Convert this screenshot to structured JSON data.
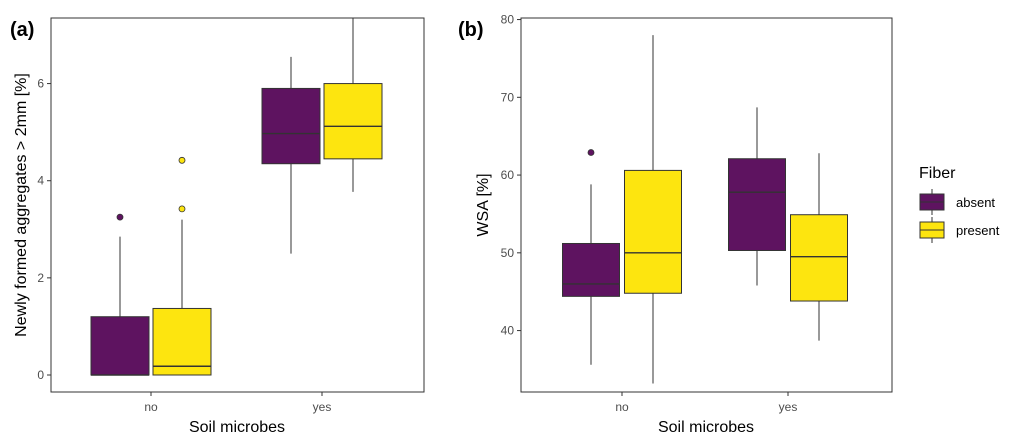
{
  "colors": {
    "absent": "#5e1360",
    "present": "#fde50f"
  },
  "legend": {
    "title": "Fiber",
    "items": [
      {
        "key": "absent",
        "label": "absent"
      },
      {
        "key": "present",
        "label": "present"
      }
    ]
  },
  "chart_data": [
    {
      "type": "box",
      "panel_label": "(a)",
      "xlabel": "Soil microbes",
      "ylabel": "Newly formed aggregates > 2mm [%]",
      "categories": [
        "no",
        "yes"
      ],
      "ylim": [
        -0.35,
        7.35
      ],
      "yticks": [
        0,
        2,
        4,
        6
      ],
      "grid": false,
      "series": [
        {
          "name": "absent",
          "color_key": "absent",
          "boxes": [
            {
              "category": "no",
              "min": 0.0,
              "q1": 0.0,
              "median": 0.0,
              "q3": 1.2,
              "max": 2.85,
              "outliers": [
                3.25
              ]
            },
            {
              "category": "yes",
              "min": 2.5,
              "q1": 4.35,
              "median": 4.97,
              "q3": 5.9,
              "max": 6.55,
              "outliers": []
            }
          ]
        },
        {
          "name": "present",
          "color_key": "present",
          "boxes": [
            {
              "category": "no",
              "min": 0.0,
              "q1": 0.0,
              "median": 0.18,
              "q3": 1.37,
              "max": 3.2,
              "outliers": [
                3.42,
                4.42
              ]
            },
            {
              "category": "yes",
              "min": 3.77,
              "q1": 4.45,
              "median": 5.12,
              "q3": 6.0,
              "max": 7.35,
              "outliers": []
            }
          ]
        }
      ]
    },
    {
      "type": "box",
      "panel_label": "(b)",
      "xlabel": "Soil microbes",
      "ylabel": "WSA [%]",
      "categories": [
        "no",
        "yes"
      ],
      "ylim": [
        32.1,
        80.2
      ],
      "yticks": [
        40,
        50,
        60,
        70,
        80
      ],
      "grid": false,
      "series": [
        {
          "name": "absent",
          "color_key": "absent",
          "boxes": [
            {
              "category": "no",
              "min": 35.6,
              "q1": 44.4,
              "median": 46.0,
              "q3": 51.2,
              "max": 58.8,
              "outliers": [
                62.9
              ]
            },
            {
              "category": "yes",
              "min": 45.8,
              "q1": 50.3,
              "median": 57.8,
              "q3": 62.1,
              "max": 68.7,
              "outliers": []
            }
          ]
        },
        {
          "name": "present",
          "color_key": "present",
          "boxes": [
            {
              "category": "no",
              "min": 33.2,
              "q1": 44.8,
              "median": 50.0,
              "q3": 60.6,
              "max": 78.0,
              "outliers": []
            },
            {
              "category": "yes",
              "min": 38.7,
              "q1": 43.8,
              "median": 49.5,
              "q3": 54.9,
              "max": 62.8,
              "outliers": []
            }
          ]
        }
      ]
    }
  ]
}
